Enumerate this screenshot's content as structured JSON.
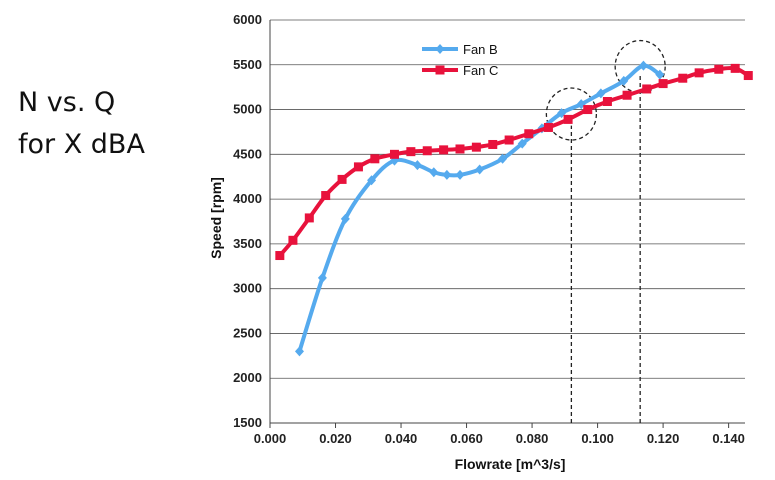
{
  "side_title": {
    "line1": "N vs. Q",
    "line2": "for X dBA"
  },
  "chart_data": {
    "type": "line",
    "title": "",
    "xlabel": "Flowrate [m^3/s]",
    "ylabel": "Speed [rpm]",
    "xlim": [
      0.0,
      0.145
    ],
    "ylim": [
      1500,
      6000
    ],
    "x_ticks": [
      "0.000",
      "0.020",
      "0.040",
      "0.060",
      "0.080",
      "0.100",
      "0.120",
      "0.140"
    ],
    "x_tick_values": [
      0.0,
      0.02,
      0.04,
      0.06,
      0.08,
      0.1,
      0.12,
      0.14
    ],
    "y_ticks": [
      "1500",
      "2000",
      "2500",
      "3000",
      "3500",
      "4000",
      "4500",
      "5000",
      "5500",
      "6000"
    ],
    "y_tick_values": [
      1500,
      2000,
      2500,
      3000,
      3500,
      4000,
      4500,
      5000,
      5500,
      6000
    ],
    "grid": "horizontal",
    "legend_position": "top",
    "series": [
      {
        "name": "Fan B",
        "color": "#55AAEE",
        "marker": "diamond",
        "points": [
          [
            0.009,
            2300
          ],
          [
            0.016,
            3120
          ],
          [
            0.023,
            3780
          ],
          [
            0.031,
            4210
          ],
          [
            0.038,
            4430
          ],
          [
            0.045,
            4380
          ],
          [
            0.05,
            4300
          ],
          [
            0.054,
            4270
          ],
          [
            0.058,
            4270
          ],
          [
            0.064,
            4330
          ],
          [
            0.071,
            4450
          ],
          [
            0.077,
            4620
          ],
          [
            0.083,
            4790
          ],
          [
            0.089,
            4960
          ],
          [
            0.095,
            5060
          ],
          [
            0.101,
            5180
          ],
          [
            0.108,
            5320
          ],
          [
            0.114,
            5490
          ],
          [
            0.119,
            5390
          ]
        ]
      },
      {
        "name": "Fan C",
        "color": "#E8123C",
        "marker": "square",
        "points": [
          [
            0.003,
            3370
          ],
          [
            0.007,
            3540
          ],
          [
            0.012,
            3790
          ],
          [
            0.017,
            4040
          ],
          [
            0.022,
            4220
          ],
          [
            0.027,
            4360
          ],
          [
            0.032,
            4450
          ],
          [
            0.038,
            4500
          ],
          [
            0.043,
            4530
          ],
          [
            0.048,
            4540
          ],
          [
            0.053,
            4550
          ],
          [
            0.058,
            4560
          ],
          [
            0.063,
            4580
          ],
          [
            0.068,
            4610
          ],
          [
            0.073,
            4660
          ],
          [
            0.079,
            4730
          ],
          [
            0.085,
            4800
          ],
          [
            0.091,
            4890
          ],
          [
            0.097,
            5000
          ],
          [
            0.103,
            5090
          ],
          [
            0.109,
            5160
          ],
          [
            0.115,
            5230
          ],
          [
            0.12,
            5290
          ],
          [
            0.126,
            5350
          ],
          [
            0.131,
            5410
          ],
          [
            0.137,
            5450
          ],
          [
            0.142,
            5460
          ],
          [
            0.146,
            5380
          ]
        ]
      }
    ],
    "annotations": [
      {
        "type": "dashed-circle",
        "x": 0.092,
        "y": 4950
      },
      {
        "type": "dashed-circle",
        "x": 0.113,
        "y": 5480
      },
      {
        "type": "dashed-vline",
        "x": 0.092,
        "y_from": 1500,
        "y_to": 4820
      },
      {
        "type": "dashed-vline",
        "x": 0.113,
        "y_from": 1500,
        "y_to": 5380
      }
    ]
  }
}
